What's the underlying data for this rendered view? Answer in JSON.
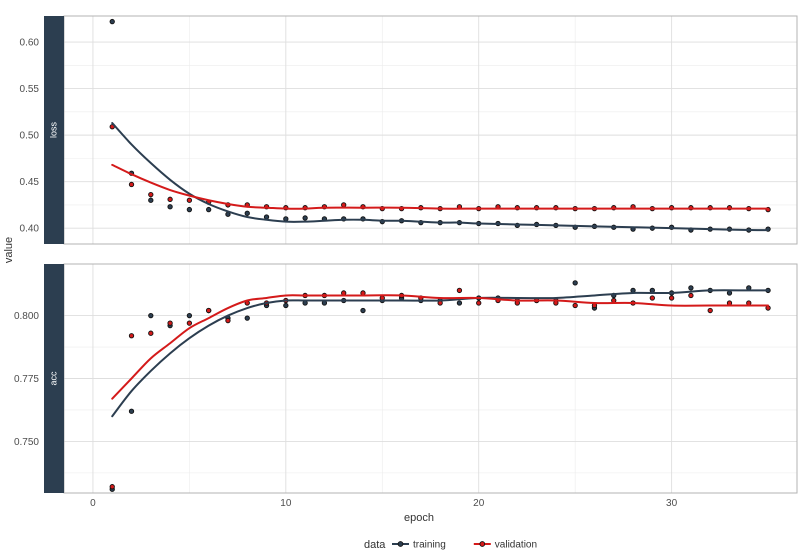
{
  "chart_data": {
    "type": "scatter",
    "smooth": true,
    "grid": true,
    "legend_position": "bottom",
    "xlabel": "epoch",
    "ylabel": "value",
    "legend_title": "data",
    "x_ticks": [
      0,
      10,
      20,
      30
    ],
    "xlim": [
      -1.5,
      36.5
    ],
    "colors": {
      "training": "#2c3e50",
      "validation": "#d41a1a",
      "strip": "#2c3e50"
    },
    "series_names": [
      "training",
      "validation"
    ],
    "panels": [
      {
        "label": "loss",
        "ylim": [
          0.383,
          0.628
        ],
        "y_ticks": [
          0.4,
          0.45,
          0.5,
          0.55,
          0.6
        ],
        "y_tick_labels": [
          "0.40",
          "0.45",
          "0.50",
          "0.55",
          "0.60"
        ],
        "series": [
          {
            "name": "training",
            "x": [
              1,
              2,
              3,
              4,
              5,
              6,
              7,
              8,
              9,
              10,
              11,
              12,
              13,
              14,
              15,
              16,
              17,
              18,
              19,
              20,
              21,
              22,
              23,
              24,
              25,
              26,
              27,
              28,
              29,
              30,
              31,
              32,
              33,
              34,
              35
            ],
            "values": [
              0.622,
              0.459,
              0.43,
              0.423,
              0.42,
              0.42,
              0.415,
              0.416,
              0.412,
              0.41,
              0.411,
              0.41,
              0.41,
              0.41,
              0.407,
              0.408,
              0.406,
              0.406,
              0.406,
              0.405,
              0.405,
              0.403,
              0.404,
              0.403,
              0.401,
              0.402,
              0.401,
              0.399,
              0.4,
              0.401,
              0.398,
              0.399,
              0.399,
              0.398,
              0.399
            ]
          },
          {
            "name": "validation",
            "x": [
              1,
              2,
              3,
              4,
              5,
              6,
              7,
              8,
              9,
              10,
              11,
              12,
              13,
              14,
              15,
              16,
              17,
              18,
              19,
              20,
              21,
              22,
              23,
              24,
              25,
              26,
              27,
              28,
              29,
              30,
              31,
              32,
              33,
              34,
              35
            ],
            "values": [
              0.509,
              0.447,
              0.436,
              0.431,
              0.43,
              0.428,
              0.425,
              0.425,
              0.423,
              0.422,
              0.422,
              0.423,
              0.425,
              0.423,
              0.421,
              0.421,
              0.422,
              0.421,
              0.423,
              0.421,
              0.423,
              0.422,
              0.422,
              0.422,
              0.421,
              0.421,
              0.422,
              0.423,
              0.421,
              0.422,
              0.422,
              0.422,
              0.422,
              0.421,
              0.42
            ]
          }
        ],
        "smooth_series": [
          {
            "name": "training",
            "x": [
              1,
              2,
              3,
              4,
              5,
              6,
              7,
              8,
              9,
              10,
              11,
              12,
              13,
              14,
              15,
              16,
              17,
              18,
              19,
              20,
              22,
              24,
              26,
              28,
              30,
              32,
              34,
              35
            ],
            "values": [
              0.513,
              0.49,
              0.47,
              0.452,
              0.437,
              0.426,
              0.418,
              0.412,
              0.409,
              0.407,
              0.407,
              0.408,
              0.409,
              0.409,
              0.408,
              0.408,
              0.407,
              0.406,
              0.406,
              0.405,
              0.404,
              0.403,
              0.402,
              0.401,
              0.4,
              0.399,
              0.398,
              0.398
            ]
          },
          {
            "name": "validation",
            "x": [
              1,
              2,
              3,
              4,
              5,
              6,
              7,
              8,
              9,
              10,
              11,
              12,
              14,
              16,
              18,
              20,
              22,
              24,
              26,
              28,
              30,
              32,
              34,
              35
            ],
            "values": [
              0.468,
              0.458,
              0.449,
              0.441,
              0.435,
              0.43,
              0.426,
              0.423,
              0.422,
              0.421,
              0.421,
              0.422,
              0.422,
              0.422,
              0.421,
              0.421,
              0.421,
              0.421,
              0.421,
              0.421,
              0.421,
              0.421,
              0.421,
              0.421
            ]
          }
        ]
      },
      {
        "label": "acc",
        "ylim": [
          0.7295,
          0.8205
        ],
        "y_ticks": [
          0.75,
          0.775,
          0.8
        ],
        "y_tick_labels": [
          "0.750",
          "0.775",
          "0.800"
        ],
        "series": [
          {
            "name": "training",
            "x": [
              1,
              2,
              3,
              4,
              5,
              6,
              7,
              8,
              9,
              10,
              11,
              12,
              13,
              14,
              15,
              16,
              17,
              18,
              19,
              20,
              21,
              22,
              23,
              24,
              25,
              26,
              27,
              28,
              29,
              30,
              31,
              32,
              33,
              34,
              35
            ],
            "values": [
              0.731,
              0.762,
              0.8,
              0.796,
              0.8,
              0.802,
              0.799,
              0.799,
              0.804,
              0.804,
              0.805,
              0.805,
              0.806,
              0.802,
              0.806,
              0.807,
              0.806,
              0.806,
              0.805,
              0.807,
              0.807,
              0.806,
              0.806,
              0.806,
              0.813,
              0.803,
              0.808,
              0.81,
              0.81,
              0.809,
              0.811,
              0.81,
              0.809,
              0.811,
              0.81
            ]
          },
          {
            "name": "validation",
            "x": [
              1,
              2,
              3,
              4,
              5,
              6,
              7,
              8,
              9,
              10,
              11,
              12,
              13,
              14,
              15,
              16,
              17,
              18,
              19,
              20,
              21,
              22,
              23,
              24,
              25,
              26,
              27,
              28,
              29,
              30,
              31,
              32,
              33,
              34,
              35
            ],
            "values": [
              0.732,
              0.792,
              0.793,
              0.797,
              0.797,
              0.802,
              0.798,
              0.805,
              0.805,
              0.806,
              0.808,
              0.808,
              0.809,
              0.809,
              0.807,
              0.808,
              0.807,
              0.805,
              0.81,
              0.805,
              0.806,
              0.805,
              0.806,
              0.805,
              0.804,
              0.804,
              0.806,
              0.805,
              0.807,
              0.807,
              0.808,
              0.802,
              0.805,
              0.805,
              0.803
            ]
          }
        ],
        "smooth_series": [
          {
            "name": "training",
            "x": [
              1,
              2,
              3,
              4,
              5,
              6,
              7,
              8,
              9,
              10,
              11,
              12,
              13,
              14,
              16,
              18,
              20,
              22,
              24,
              26,
              28,
              30,
              32,
              34,
              35
            ],
            "values": [
              0.76,
              0.77,
              0.778,
              0.785,
              0.791,
              0.796,
              0.8,
              0.803,
              0.805,
              0.806,
              0.806,
              0.806,
              0.806,
              0.806,
              0.806,
              0.806,
              0.807,
              0.807,
              0.807,
              0.808,
              0.809,
              0.809,
              0.81,
              0.81,
              0.81
            ]
          },
          {
            "name": "validation",
            "x": [
              1,
              2,
              3,
              4,
              5,
              6,
              7,
              8,
              9,
              10,
              11,
              12,
              13,
              14,
              16,
              18,
              20,
              22,
              24,
              26,
              28,
              30,
              32,
              34,
              35
            ],
            "values": [
              0.767,
              0.775,
              0.783,
              0.789,
              0.795,
              0.799,
              0.803,
              0.806,
              0.807,
              0.808,
              0.808,
              0.808,
              0.808,
              0.808,
              0.808,
              0.807,
              0.807,
              0.806,
              0.806,
              0.805,
              0.805,
              0.804,
              0.804,
              0.804,
              0.804
            ]
          }
        ]
      }
    ]
  }
}
